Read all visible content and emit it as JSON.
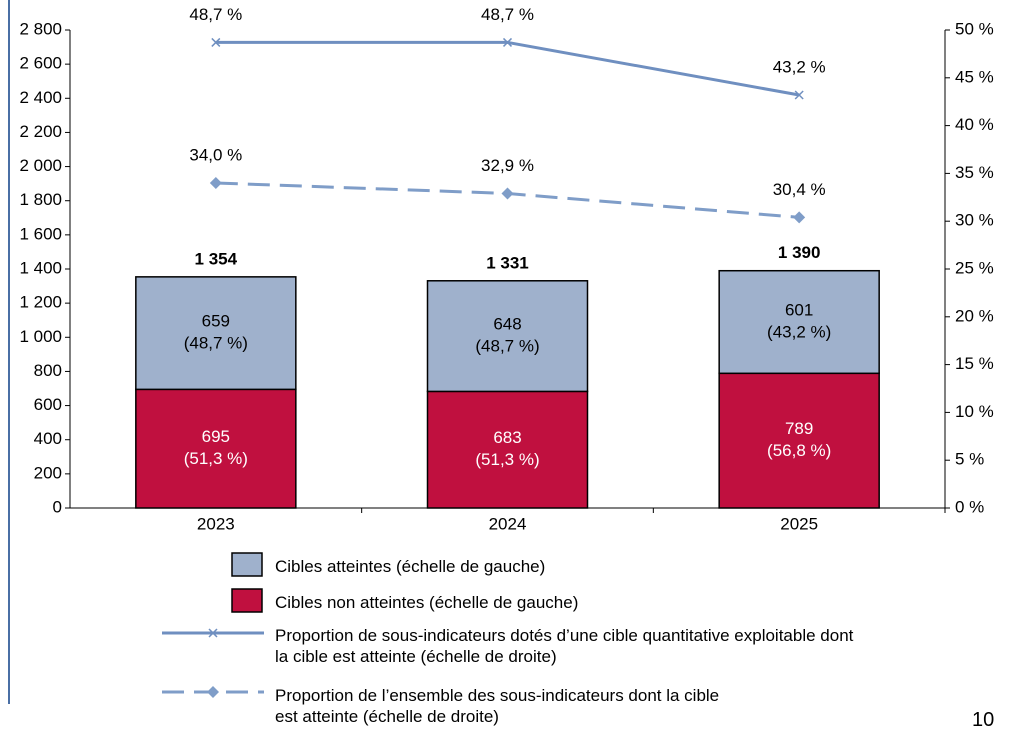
{
  "chart_data": {
    "type": "combo",
    "categories": [
      "2023",
      "2024",
      "2025"
    ],
    "series": [
      {
        "name": "Cibles non atteintes (échelle de gauche)",
        "color": "#c0103f",
        "values": [
          695,
          683,
          789
        ],
        "percent_labels": [
          "(51,3 %)",
          "(51,3 %)",
          "(56,8 %)"
        ]
      },
      {
        "name": "Cibles atteintes  (échelle de gauche)",
        "color": "#9fb1cc",
        "values": [
          659,
          648,
          601
        ],
        "percent_labels": [
          "(48,7 %)",
          "(48,7 %)",
          "(43,2 %)"
        ]
      },
      {
        "name": "Proportion de sous-indicateurs dotés d’une cible quantitative exploitable dont la cible est atteinte (échelle de droite)",
        "color": "#6f8fc0",
        "axis": "y2",
        "style": "solid",
        "marker": "x",
        "values": [
          48.7,
          48.7,
          43.2
        ],
        "value_labels": [
          "48,7 %",
          "48,7 %",
          "43,2 %"
        ]
      },
      {
        "name": "Proportion de l’ensemble des sous-indicateurs dont la cible est atteinte (échelle de droite)",
        "color": "#7f9dc8",
        "axis": "y2",
        "style": "dashed",
        "marker": "diamond",
        "values": [
          34.0,
          32.9,
          30.4
        ],
        "value_labels": [
          "34,0 %",
          "32,9 %",
          "30,4 %"
        ]
      }
    ],
    "totals": [
      1354,
      1331,
      1390
    ],
    "total_labels": [
      "1 354",
      "1 331",
      "1 390"
    ],
    "ylim": [
      0,
      2800
    ],
    "yticks": [
      0,
      200,
      400,
      600,
      800,
      {
        "value": 1000,
        "label": "1 000"
      },
      {
        "value": 1200,
        "label": "1 200"
      },
      {
        "value": 1400,
        "label": "1 400"
      },
      {
        "value": 1600,
        "label": "1 600"
      },
      {
        "value": 1800,
        "label": "1 800"
      },
      {
        "value": 2000,
        "label": "2 000"
      },
      {
        "value": 2200,
        "label": "2 200"
      },
      {
        "value": 2400,
        "label": "2 400"
      },
      {
        "value": 2600,
        "label": "2 600"
      },
      {
        "value": 2800,
        "label": "2 800"
      }
    ],
    "y2lim": [
      0,
      50
    ],
    "y2ticks": [
      {
        "value": 0,
        "label": "0 %"
      },
      {
        "value": 5,
        "label": "5 %"
      },
      {
        "value": 10,
        "label": "10 %"
      },
      {
        "value": 15,
        "label": "15 %"
      },
      {
        "value": 20,
        "label": "20 %"
      },
      {
        "value": 25,
        "label": "25 %"
      },
      {
        "value": 30,
        "label": "30 %"
      },
      {
        "value": 35,
        "label": "35 %"
      },
      {
        "value": 40,
        "label": "40 %"
      },
      {
        "value": 45,
        "label": "45 %"
      },
      {
        "value": 50,
        "label": "50 %"
      }
    ],
    "grid": false,
    "page_number": "10"
  }
}
